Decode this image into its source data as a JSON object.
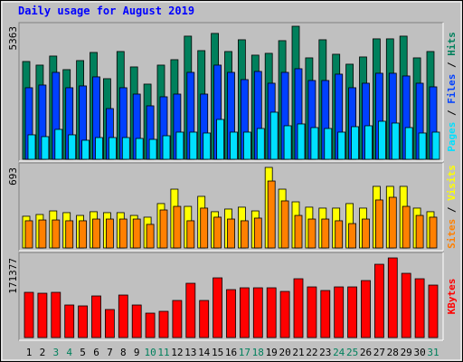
{
  "chart_data": [
    {
      "type": "bar",
      "title": "Daily usage for August 2019",
      "series": [
        {
          "name": "Pages",
          "color": "#00e0ff",
          "values": [
            986,
            913,
            1205,
            986,
            767,
            876,
            876,
            876,
            840,
            803,
            949,
            1095,
            1095,
            1059,
            1606,
            1095,
            1095,
            1241,
            1898,
            1351,
            1424,
            1278,
            1241,
            1095,
            1314,
            1351,
            1533,
            1460,
            1278,
            1059,
            1095
          ]
        },
        {
          "name": "Files",
          "color": "#0040ff",
          "values": [
            2884,
            2993,
            3504,
            2884,
            2957,
            3322,
            2044,
            2884,
            2628,
            2154,
            2519,
            2628,
            3504,
            2628,
            3796,
            3504,
            3212,
            3541,
            3066,
            3504,
            3650,
            3176,
            3176,
            3431,
            2884,
            3066,
            3468,
            3468,
            3358,
            3066,
            2920
          ]
        },
        {
          "name": "Hits",
          "color": "#00805c",
          "values": [
            3942,
            3796,
            4161,
            3614,
            3979,
            4307,
            3249,
            4344,
            3723,
            3030,
            3796,
            4015,
            4964,
            4380,
            5074,
            4344,
            4818,
            4198,
            4271,
            4782,
            5363,
            4088,
            4818,
            4234,
            3833,
            4125,
            4855,
            4855,
            4964,
            4088,
            4344
          ]
        }
      ],
      "legend_separator": " / ",
      "ylim": [
        0,
        5363
      ],
      "yticks": [
        5363
      ]
    },
    {
      "type": "bar",
      "series": [
        {
          "name": "Sites",
          "color": "#ff8000",
          "values": [
            234,
            241,
            241,
            234,
            234,
            249,
            249,
            249,
            249,
            203,
            327,
            358,
            234,
            343,
            265,
            249,
            234,
            257,
            576,
            405,
            280,
            249,
            249,
            234,
            210,
            249,
            413,
            436,
            358,
            280,
            265
          ]
        },
        {
          "name": "Visits",
          "color": "#ffff00",
          "values": [
            273,
            288,
            319,
            304,
            280,
            312,
            304,
            304,
            280,
            265,
            382,
            506,
            358,
            444,
            312,
            335,
            351,
            319,
            693,
            506,
            397,
            351,
            343,
            343,
            382,
            343,
            530,
            530,
            530,
            343,
            312
          ]
        }
      ],
      "legend_separator": " / ",
      "ylim": [
        0,
        693
      ],
      "yticks": [
        693
      ]
    },
    {
      "type": "bar",
      "categories": [
        "1",
        "2",
        "3",
        "4",
        "5",
        "6",
        "7",
        "8",
        "9",
        "10",
        "11",
        "12",
        "13",
        "14",
        "15",
        "16",
        "17",
        "18",
        "19",
        "20",
        "21",
        "22",
        "23",
        "24",
        "25",
        "26",
        "27",
        "28",
        "29",
        "30",
        "31"
      ],
      "category_colors": [
        "#000000",
        "#000000",
        "#00805c",
        "#00805c",
        "#000000",
        "#000000",
        "#000000",
        "#000000",
        "#000000",
        "#00805c",
        "#00805c",
        "#000000",
        "#000000",
        "#000000",
        "#000000",
        "#000000",
        "#00805c",
        "#00805c",
        "#000000",
        "#000000",
        "#000000",
        "#000000",
        "#000000",
        "#00805c",
        "#00805c",
        "#000000",
        "#000000",
        "#000000",
        "#000000",
        "#000000",
        "#00805c"
      ],
      "series": [
        {
          "name": "KBytes",
          "color": "#ff0000",
          "values": [
            97350,
            95403,
            97350,
            70092,
            68145,
            89562,
            60357,
            91509,
            70092,
            52569,
            56463,
            79827,
            116820,
            79827,
            128502,
            103191,
            107085,
            107085,
            107085,
            99297,
            126555,
            109032,
            101244,
            109032,
            109032,
            122661,
            157707,
            171377,
            138237,
            126555,
            112926
          ]
        }
      ],
      "ylim": [
        0,
        171377
      ],
      "yticks": [
        171377
      ]
    }
  ]
}
